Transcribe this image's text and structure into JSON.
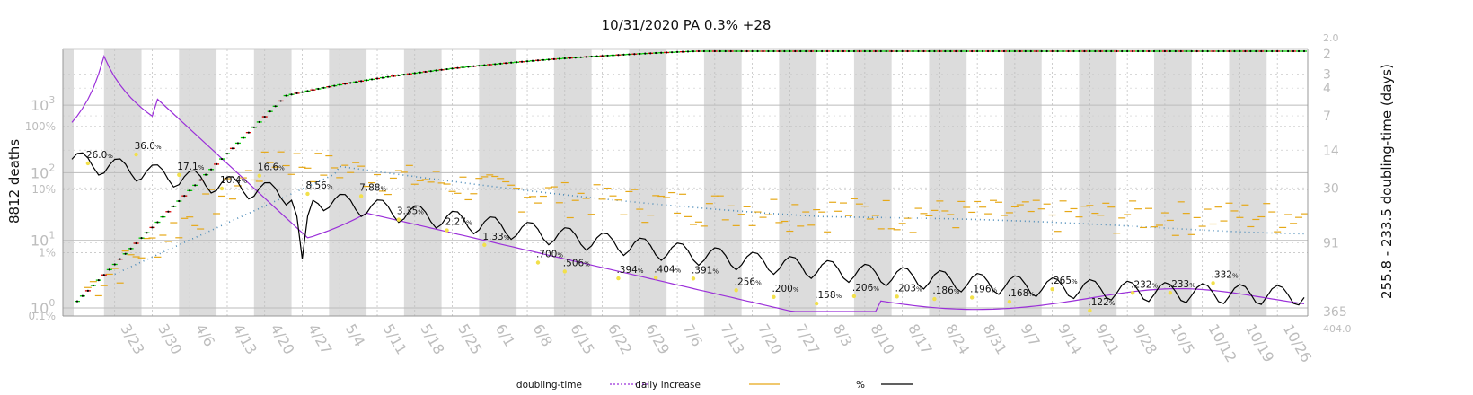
{
  "chart_data": {
    "type": "line",
    "title": "10/31/2020 PA 0.3% +28",
    "ylabel_left": "8812 deaths",
    "ylabel_right": "255.8 - 233.5 doubling-time (days)",
    "left_ticks": [
      {
        "value": 1,
        "label": "10",
        "exp": "0"
      },
      {
        "value": 10,
        "label": "10",
        "exp": "1"
      },
      {
        "value": 100,
        "label": "10",
        "exp": "2"
      },
      {
        "value": 1000,
        "label": "10",
        "exp": "3"
      }
    ],
    "pct_ticks": [
      {
        "value": 0.1,
        "label": "0.1%"
      },
      {
        "value": 1,
        "label": "1%"
      },
      {
        "value": 10,
        "label": "10%"
      },
      {
        "value": 100,
        "label": "100%"
      }
    ],
    "right_ticks": [
      "2",
      "3",
      "4",
      "7",
      "14",
      "30",
      "91",
      "365"
    ],
    "right_top_label": "2.0",
    "right_bottom_label": "404.0",
    "x_ticks": [
      "3/23",
      "3/30",
      "4/6",
      "4/13",
      "4/20",
      "4/27",
      "5/4",
      "5/11",
      "5/18",
      "5/25",
      "6/1",
      "6/8",
      "6/15",
      "6/22",
      "6/29",
      "7/6",
      "7/13",
      "7/20",
      "7/27",
      "8/3",
      "8/10",
      "8/17",
      "8/24",
      "8/31",
      "9/7",
      "9/14",
      "9/21",
      "9/28",
      "10/5",
      "10/12",
      "10/19",
      "10/26"
    ],
    "percent_annotations": [
      {
        "day": 3,
        "text": "26.0",
        "unit": "%"
      },
      {
        "day": 12,
        "text": "36.0",
        "unit": "%"
      },
      {
        "day": 20,
        "text": "17.1",
        "unit": "%"
      },
      {
        "day": 28,
        "text": "10.4",
        "unit": "%"
      },
      {
        "day": 35,
        "text": "16.6",
        "unit": "%"
      },
      {
        "day": 44,
        "text": "8.56",
        "unit": "%"
      },
      {
        "day": 54,
        "text": "7.88",
        "unit": "%"
      },
      {
        "day": 61,
        "text": "3.35",
        "unit": "%"
      },
      {
        "day": 70,
        "text": "2.27",
        "unit": "%"
      },
      {
        "day": 77,
        "text": "1.33",
        "unit": "%"
      },
      {
        "day": 87,
        "text": ".700",
        "unit": "%"
      },
      {
        "day": 92,
        "text": ".506",
        "unit": "%"
      },
      {
        "day": 102,
        "text": ".394",
        "unit": "%"
      },
      {
        "day": 109,
        "text": ".404",
        "unit": "%"
      },
      {
        "day": 116,
        "text": ".391",
        "unit": "%"
      },
      {
        "day": 124,
        "text": ".256",
        "unit": "%"
      },
      {
        "day": 131,
        "text": ".200",
        "unit": "%"
      },
      {
        "day": 139,
        "text": ".158",
        "unit": "%"
      },
      {
        "day": 146,
        "text": ".206",
        "unit": "%"
      },
      {
        "day": 154,
        "text": ".203",
        "unit": "%"
      },
      {
        "day": 161,
        "text": ".186",
        "unit": "%"
      },
      {
        "day": 168,
        "text": ".196",
        "unit": "%"
      },
      {
        "day": 175,
        "text": ".168",
        "unit": "%"
      },
      {
        "day": 183,
        "text": ".265",
        "unit": "%"
      },
      {
        "day": 190,
        "text": ".122",
        "unit": "%"
      },
      {
        "day": 198,
        "text": ".232",
        "unit": "%"
      },
      {
        "day": 205,
        "text": ".233",
        "unit": "%"
      },
      {
        "day": 213,
        "text": ".332",
        "unit": "%"
      }
    ],
    "legend": [
      {
        "label": "doubling-time",
        "color": "#9b30d9",
        "style": "dotted"
      },
      {
        "label": "daily increase",
        "color": "#e6a817",
        "style": "solid"
      },
      {
        "label": "%",
        "color": "#000000",
        "style": "solid"
      }
    ],
    "colors": {
      "cumulative_up": "#00cc00",
      "cumulative_down": "#dd0000",
      "daily": "#e6a817",
      "percent": "#000000",
      "doubling": "#9b30d9",
      "avg": "#4a8ab8",
      "band": "#dcdcdc"
    },
    "grid": true,
    "x_day0": "3/15/2020",
    "x_days": 230
  }
}
